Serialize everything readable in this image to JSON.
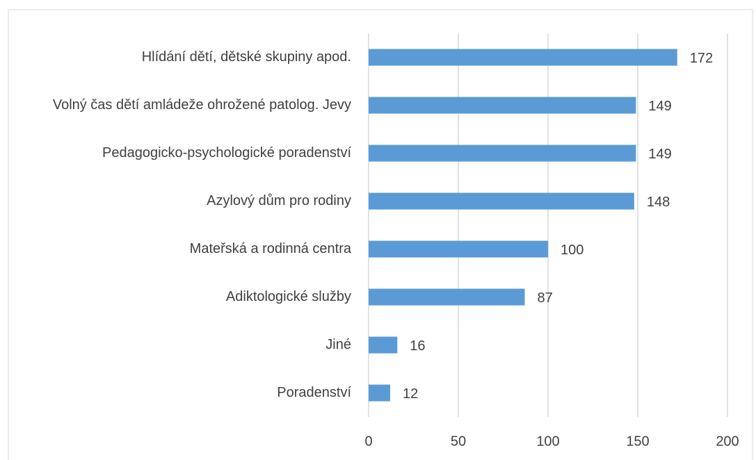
{
  "chart_data": {
    "type": "bar",
    "orientation": "horizontal",
    "categories": [
      "Hlídání dětí, dětské skupiny apod.",
      "Volný čas dětí amládeže ohrožené patolog. Jevy",
      "Pedagogicko-psychologické poradenství",
      "Azylový dům pro rodiny",
      "Mateřská a rodinná centra",
      "Adiktologické služby",
      "Jiné",
      "Poradenství"
    ],
    "values": [
      172,
      149,
      149,
      148,
      100,
      87,
      16,
      12
    ],
    "color": "#5b9bd5",
    "xlim": [
      0,
      200
    ],
    "xticks": [
      0,
      50,
      100,
      150,
      200
    ],
    "grid": true
  }
}
